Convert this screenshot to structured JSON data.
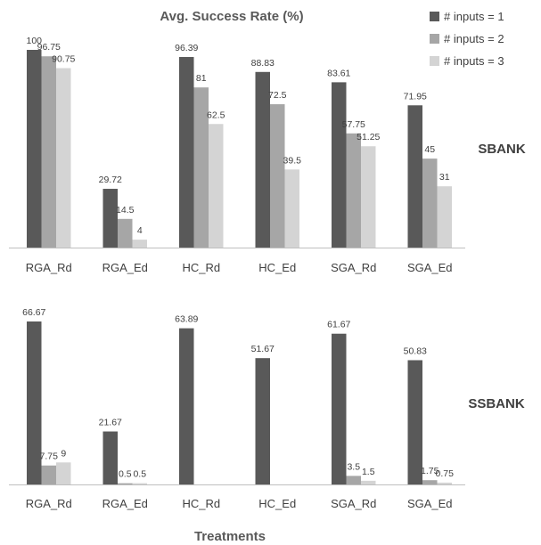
{
  "chart_data": {
    "type": "bar",
    "title": "Avg. Success Rate (%)",
    "xlabel": "Treatments",
    "categories": [
      "RGA_Rd",
      "RGA_Ed",
      "HC_Rd",
      "HC_Ed",
      "SGA_Rd",
      "SGA_Ed"
    ],
    "legend": {
      "placement": "top-right",
      "entries": [
        "# inputs = 1",
        "# inputs = 2",
        "# inputs = 3"
      ]
    },
    "colors": [
      "#595959",
      "#a6a6a6",
      "#d4d4d4"
    ],
    "panels": [
      {
        "label": "SBANK",
        "ylim": [
          0,
          100
        ],
        "series": [
          {
            "name": "# inputs = 1",
            "values": [
              100,
              29.72,
              96.39,
              88.83,
              83.61,
              71.95
            ],
            "labels": [
              "100",
              "29.72",
              "96.39",
              "88.83",
              "83.61",
              "71.95"
            ]
          },
          {
            "name": "# inputs = 2",
            "values": [
              96.75,
              14.5,
              81,
              72.5,
              57.75,
              45
            ],
            "labels": [
              "96.75",
              "14.5",
              "81",
              "72.5",
              "57.75",
              "45"
            ]
          },
          {
            "name": "# inputs = 3",
            "values": [
              90.75,
              4,
              62.5,
              39.5,
              51.25,
              31
            ],
            "labels": [
              "90.75",
              "4",
              "62.5",
              "39.5",
              "51.25",
              "31"
            ]
          }
        ]
      },
      {
        "label": "SSBANK",
        "ylim": [
          0,
          66.67
        ],
        "series": [
          {
            "name": "# inputs = 1",
            "values": [
              66.67,
              21.67,
              63.89,
              51.67,
              61.67,
              50.83
            ],
            "labels": [
              "66.67",
              "21.67",
              "63.89",
              "51.67",
              "61.67",
              "50.83"
            ]
          },
          {
            "name": "# inputs = 2",
            "values": [
              7.75,
              0.5,
              0,
              0,
              3.5,
              1.75
            ],
            "labels": [
              "7.75",
              "0.5",
              "",
              "",
              "3.5",
              "1.75"
            ]
          },
          {
            "name": "# inputs = 3",
            "values": [
              9,
              0.5,
              0,
              0,
              1.5,
              0.75
            ],
            "labels": [
              "9",
              "0.5",
              "",
              "",
              "1.5",
              "0.75"
            ]
          }
        ]
      }
    ]
  }
}
